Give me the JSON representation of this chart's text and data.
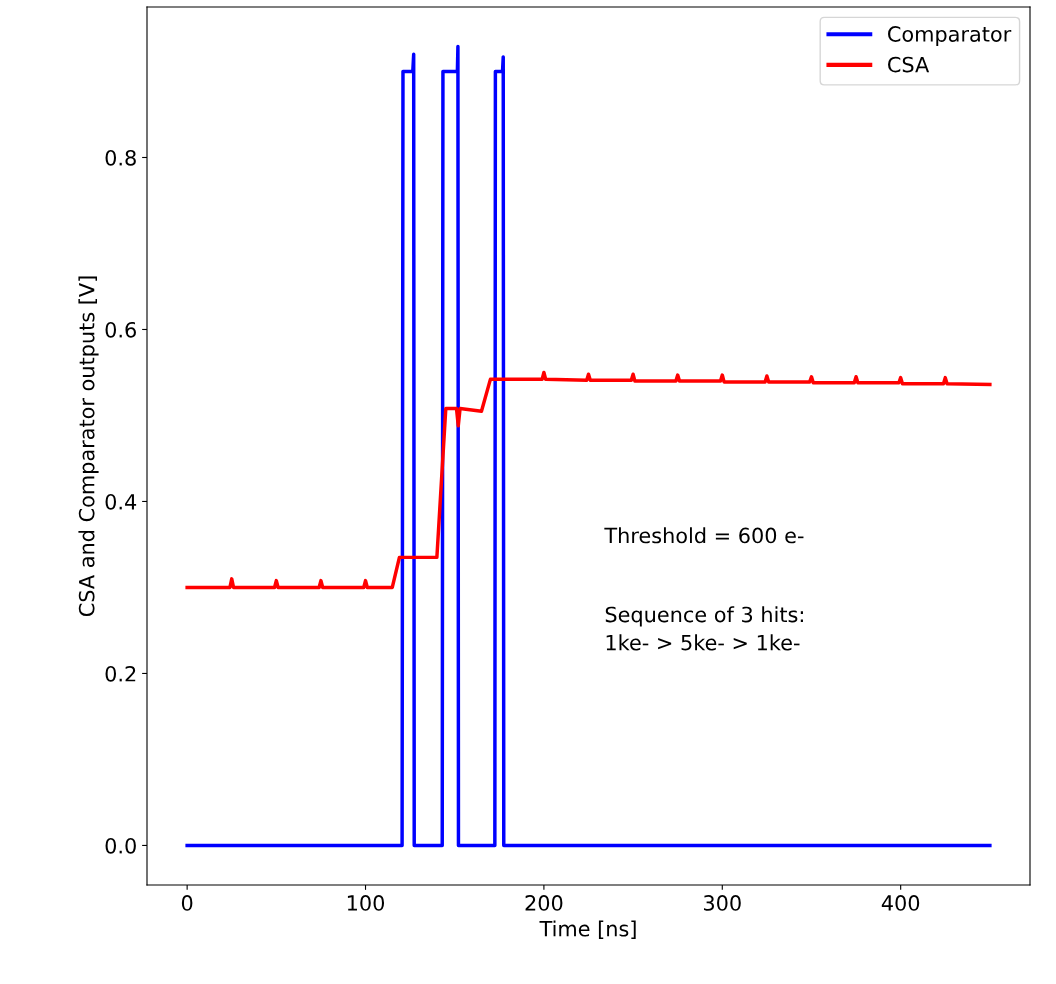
{
  "chart_data": {
    "type": "line",
    "xlabel": "Time [ns]",
    "ylabel": "CSA and Comparator outputs [V]",
    "xlim": [
      -22.5,
      472.5
    ],
    "xticks": [
      0,
      100,
      200,
      300,
      400
    ],
    "ylim": [
      -0.046,
      0.975
    ],
    "yticks": [
      {
        "value": 0,
        "label": "0.0"
      },
      0.2,
      0.4,
      0.6,
      0.8
    ],
    "grid": false,
    "legend": "top right",
    "marker": "none",
    "line_style": "solid",
    "annotations": [
      "Threshold = 600 e-",
      "Sequence of 3 hits:\n1ke- > 5ke- > 1ke-"
    ],
    "series": [
      {
        "name": "Comparator",
        "color": "#0000ff",
        "x": [
          0,
          120.5,
          121,
          126.5,
          127,
          127.3,
          143,
          143.4,
          151.5,
          151.8,
          152.1,
          172.5,
          172.8,
          176.8,
          177.2,
          177.5,
          450
        ],
        "values": [
          0,
          0,
          0.9,
          0.9,
          0.92,
          0,
          0,
          0.9,
          0.9,
          0.929,
          0,
          0,
          0.9,
          0.9,
          0.917,
          0,
          0
        ]
      },
      {
        "name": "CSA",
        "color": "#ff0000",
        "x": [
          0,
          24,
          25,
          26,
          49,
          50,
          51,
          74,
          75,
          76,
          99,
          100,
          101,
          115,
          119,
          140,
          145,
          151,
          152,
          153,
          165,
          170,
          199,
          200,
          201,
          224,
          225,
          226,
          249,
          250,
          251,
          274,
          275,
          276,
          299,
          300,
          301,
          324,
          325,
          326,
          349,
          350,
          351,
          374,
          375,
          376,
          399,
          400,
          401,
          424,
          425,
          426,
          450
        ],
        "values": [
          0.3,
          0.3,
          0.31,
          0.3,
          0.3,
          0.308,
          0.3,
          0.3,
          0.308,
          0.3,
          0.3,
          0.308,
          0.3,
          0.3,
          0.335,
          0.335,
          0.508,
          0.508,
          0.488,
          0.508,
          0.505,
          0.542,
          0.542,
          0.55,
          0.542,
          0.541,
          0.548,
          0.541,
          0.541,
          0.548,
          0.54,
          0.54,
          0.547,
          0.54,
          0.54,
          0.547,
          0.539,
          0.539,
          0.546,
          0.539,
          0.539,
          0.545,
          0.538,
          0.538,
          0.545,
          0.538,
          0.538,
          0.544,
          0.537,
          0.537,
          0.544,
          0.537,
          0.536
        ]
      }
    ]
  }
}
